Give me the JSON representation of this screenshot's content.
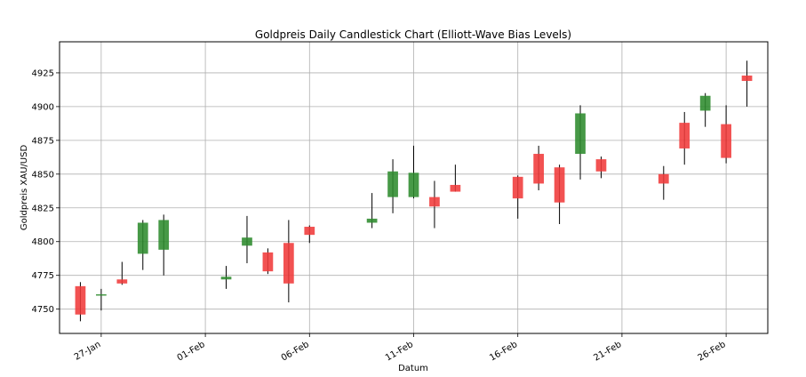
{
  "chart_data": {
    "type": "candlestick",
    "title": "Goldpreis Daily Candlestick Chart (Elliott-Wave Bias Levels)",
    "xlabel": "Datum",
    "ylabel": "Goldpreis XAU/USD",
    "ylim": [
      4732,
      4948
    ],
    "yticks": [
      4750,
      4775,
      4800,
      4825,
      4850,
      4875,
      4900,
      4925
    ],
    "xlim": [
      "2026-01-25",
      "2026-02-28"
    ],
    "xticks": [
      {
        "date": "2026-01-27",
        "label": "27-Jan"
      },
      {
        "date": "2026-02-01",
        "label": "01-Feb"
      },
      {
        "date": "2026-02-06",
        "label": "06-Feb"
      },
      {
        "date": "2026-02-11",
        "label": "11-Feb"
      },
      {
        "date": "2026-02-16",
        "label": "16-Feb"
      },
      {
        "date": "2026-02-21",
        "label": "21-Feb"
      },
      {
        "date": "2026-02-26",
        "label": "26-Feb"
      }
    ],
    "grid": true,
    "colors": {
      "up": "#2e8b2e",
      "down": "#f03a3a",
      "wick": "#000000",
      "grid": "#b0b0b0"
    },
    "candles": [
      {
        "date": "2026-01-26",
        "open": 4767,
        "high": 4770,
        "low": 4741,
        "close": 4746
      },
      {
        "date": "2026-01-27",
        "open": 4760,
        "high": 4765,
        "low": 4749,
        "close": 4761
      },
      {
        "date": "2026-01-28",
        "open": 4772,
        "high": 4785,
        "low": 4768,
        "close": 4769
      },
      {
        "date": "2026-01-29",
        "open": 4791,
        "high": 4816,
        "low": 4779,
        "close": 4814
      },
      {
        "date": "2026-01-30",
        "open": 4794,
        "high": 4820,
        "low": 4775,
        "close": 4816
      },
      {
        "date": "2026-02-02",
        "open": 4772,
        "high": 4782,
        "low": 4765,
        "close": 4774
      },
      {
        "date": "2026-02-03",
        "open": 4797,
        "high": 4819,
        "low": 4784,
        "close": 4803
      },
      {
        "date": "2026-02-04",
        "open": 4792,
        "high": 4795,
        "low": 4776,
        "close": 4778
      },
      {
        "date": "2026-02-05",
        "open": 4799,
        "high": 4816,
        "low": 4755,
        "close": 4769
      },
      {
        "date": "2026-02-06",
        "open": 4811,
        "high": 4812,
        "low": 4799,
        "close": 4805
      },
      {
        "date": "2026-02-09",
        "open": 4814,
        "high": 4836,
        "low": 4810,
        "close": 4817
      },
      {
        "date": "2026-02-10",
        "open": 4833,
        "high": 4861,
        "low": 4821,
        "close": 4852
      },
      {
        "date": "2026-02-11",
        "open": 4833,
        "high": 4871,
        "low": 4832,
        "close": 4851
      },
      {
        "date": "2026-02-12",
        "open": 4833,
        "high": 4845,
        "low": 4810,
        "close": 4826
      },
      {
        "date": "2026-02-13",
        "open": 4842,
        "high": 4857,
        "low": 4837,
        "close": 4837
      },
      {
        "date": "2026-02-16",
        "open": 4848,
        "high": 4849,
        "low": 4817,
        "close": 4832
      },
      {
        "date": "2026-02-17",
        "open": 4865,
        "high": 4871,
        "low": 4838,
        "close": 4843
      },
      {
        "date": "2026-02-18",
        "open": 4855,
        "high": 4857,
        "low": 4813,
        "close": 4829
      },
      {
        "date": "2026-02-19",
        "open": 4865,
        "high": 4901,
        "low": 4846,
        "close": 4895
      },
      {
        "date": "2026-02-20",
        "open": 4861,
        "high": 4863,
        "low": 4847,
        "close": 4852
      },
      {
        "date": "2026-02-23",
        "open": 4850,
        "high": 4856,
        "low": 4831,
        "close": 4843
      },
      {
        "date": "2026-02-24",
        "open": 4888,
        "high": 4896,
        "low": 4857,
        "close": 4869
      },
      {
        "date": "2026-02-25",
        "open": 4897,
        "high": 4910,
        "low": 4885,
        "close": 4908
      },
      {
        "date": "2026-02-26",
        "open": 4887,
        "high": 4901,
        "low": 4858,
        "close": 4862
      },
      {
        "date": "2026-02-27",
        "open": 4923,
        "high": 4934,
        "low": 4900,
        "close": 4919
      }
    ]
  }
}
